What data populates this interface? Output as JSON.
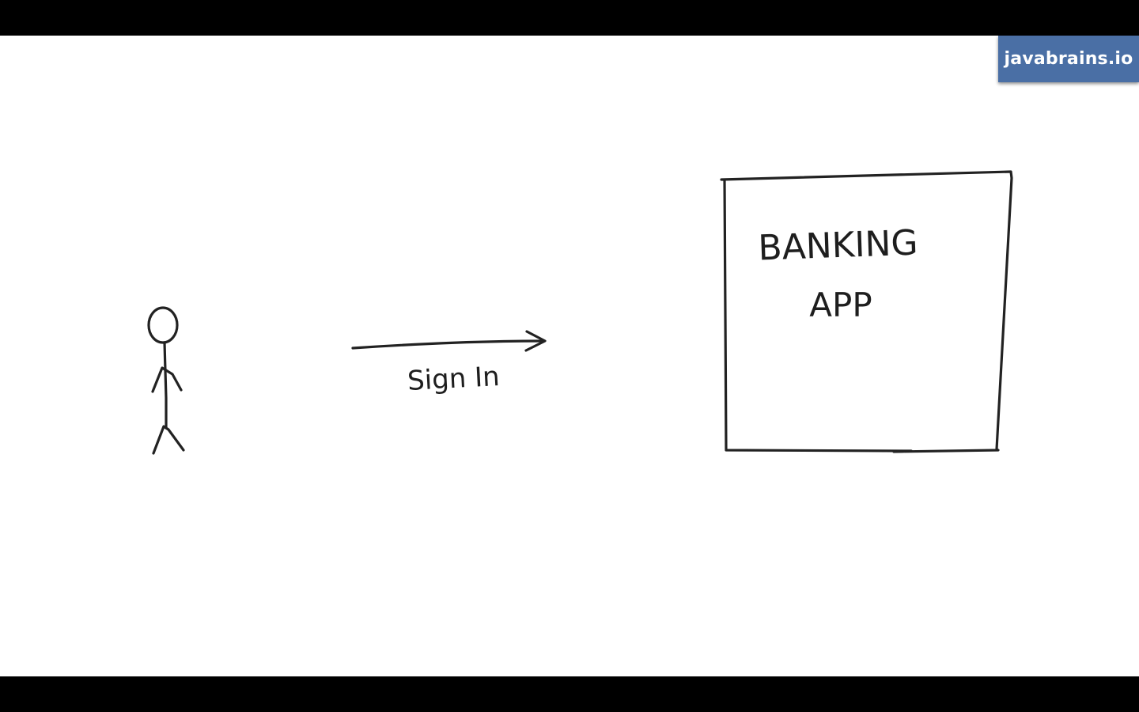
{
  "brand": {
    "text": "javabrains.io",
    "background_color": "#4a6fa5",
    "text_color": "#ffffff"
  },
  "diagram": {
    "actor": {
      "icon": "stick-figure-icon"
    },
    "arrow": {
      "label": "Sign In",
      "icon": "arrow-right-icon"
    },
    "system_box": {
      "line1": "BANKING",
      "line2": "APP"
    },
    "ink_color": "#222222",
    "background_color": "#ffffff"
  },
  "letterbox_color": "#000000"
}
